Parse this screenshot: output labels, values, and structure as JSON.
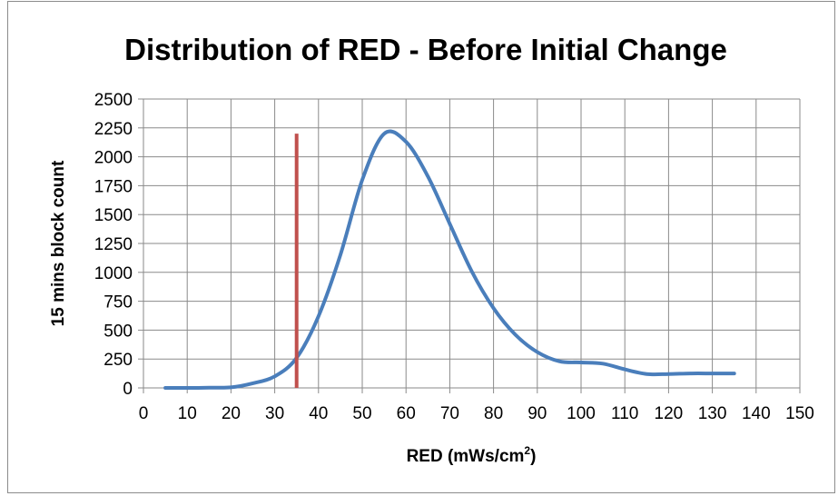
{
  "chart_data": {
    "type": "line",
    "title": "Distribution of RED - Before Initial Change",
    "xlabel": "RED (mWs/cm",
    "xlabel_sup": "2",
    "xlabel_tail": ")",
    "ylabel": "15 mins block count",
    "xlim": [
      0,
      150
    ],
    "ylim": [
      0,
      2500
    ],
    "x_ticks": [
      0,
      10,
      20,
      30,
      40,
      50,
      60,
      70,
      80,
      90,
      100,
      110,
      120,
      130,
      140,
      150
    ],
    "y_ticks": [
      0,
      250,
      500,
      750,
      1000,
      1250,
      1500,
      1750,
      2000,
      2250,
      2500
    ],
    "x_tick_labels": [
      "0",
      "10",
      "20",
      "30",
      "40",
      "50",
      "60",
      "70",
      "80",
      "90",
      "100",
      "110",
      "120",
      "130",
      "140",
      "150"
    ],
    "y_tick_labels": [
      "0",
      "250",
      "500",
      "750",
      "1000",
      "1250",
      "1500",
      "1750",
      "2000",
      "2250",
      "2500"
    ],
    "grid": true,
    "legend": "none",
    "series": [
      {
        "color": "#4a7ebb",
        "x": [
          5,
          10,
          15,
          20,
          25,
          30,
          35,
          40,
          45,
          50,
          55,
          60,
          65,
          70,
          75,
          80,
          85,
          90,
          95,
          100,
          105,
          110,
          115,
          120,
          125,
          130,
          135
        ],
        "y": [
          0,
          0,
          2,
          5,
          40,
          100,
          260,
          620,
          1150,
          1800,
          2200,
          2130,
          1830,
          1420,
          1010,
          690,
          460,
          310,
          230,
          220,
          210,
          160,
          120,
          120,
          125,
          125,
          125
        ]
      }
    ],
    "annotations": [
      {
        "type": "vline",
        "x": 35,
        "y_from": 0,
        "y_to": 2200,
        "color": "#c0504d"
      }
    ]
  }
}
